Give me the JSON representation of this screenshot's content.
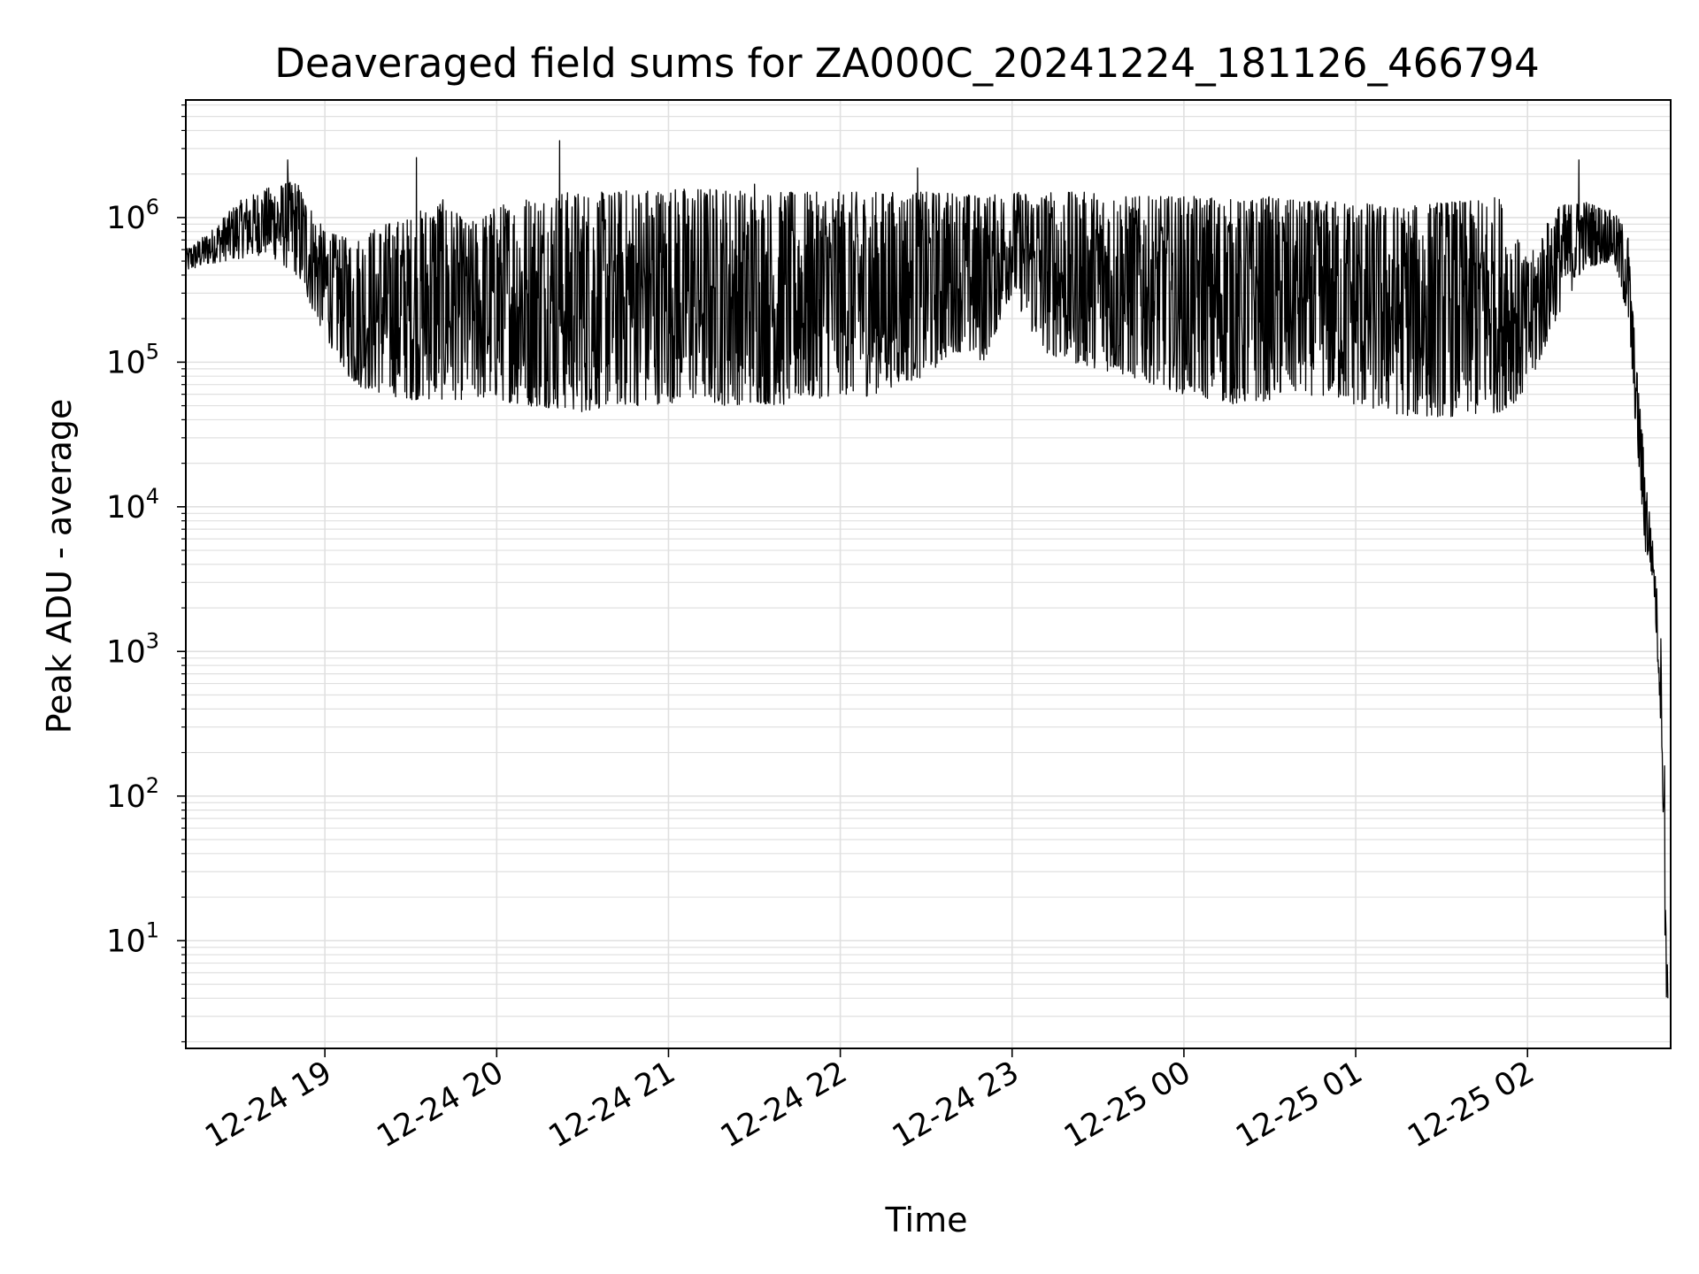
{
  "chart_data": {
    "type": "line",
    "title": "Deaveraged field sums for ZA000C_20241224_181126_466794",
    "xlabel": "Time",
    "ylabel": "Peak ADU - average",
    "x_axis": {
      "type": "time",
      "range": [
        "2024-12-24 18:11:26",
        "2024-12-25 02:50:00"
      ],
      "tick_labels": [
        "12-24 19",
        "12-24 20",
        "12-24 21",
        "12-24 22",
        "12-24 23",
        "12-25 00",
        "12-25 01",
        "12-25 02"
      ],
      "tick_rotation_deg": 30
    },
    "y_axis": {
      "scale": "log",
      "range": [
        1.8,
        6500000
      ],
      "tick_base": "10",
      "tick_exponents": [
        "1",
        "2",
        "3",
        "4",
        "5",
        "6"
      ]
    },
    "grid": {
      "major": true,
      "minor_y": true,
      "color": "#e0e0e0"
    },
    "line_color": "#000000",
    "series": [
      {
        "x": [
          "2024-12-24 18:11:26",
          "2024-12-24 18:20",
          "2024-12-24 18:30",
          "2024-12-24 18:40",
          "2024-12-24 18:50",
          "2024-12-24 19:00",
          "2024-12-24 19:10",
          "2024-12-24 19:20",
          "2024-12-24 19:30",
          "2024-12-24 19:40",
          "2024-12-24 19:50",
          "2024-12-24 20:00",
          "2024-12-24 20:10",
          "2024-12-24 20:20",
          "2024-12-24 20:30",
          "2024-12-24 20:40",
          "2024-12-24 20:50",
          "2024-12-24 21:00",
          "2024-12-24 21:10",
          "2024-12-24 21:20",
          "2024-12-24 21:30",
          "2024-12-24 21:40",
          "2024-12-24 21:50",
          "2024-12-24 22:00",
          "2024-12-24 22:10",
          "2024-12-24 22:20",
          "2024-12-24 22:30",
          "2024-12-24 22:40",
          "2024-12-24 22:50",
          "2024-12-24 23:00",
          "2024-12-24 23:10",
          "2024-12-24 23:20",
          "2024-12-24 23:30",
          "2024-12-24 23:40",
          "2024-12-24 23:50",
          "2024-12-25 00:00",
          "2024-12-25 00:10",
          "2024-12-25 00:20",
          "2024-12-25 00:30",
          "2024-12-25 00:40",
          "2024-12-25 00:50",
          "2024-12-25 01:00",
          "2024-12-25 01:10",
          "2024-12-25 01:20",
          "2024-12-25 01:30",
          "2024-12-25 01:40",
          "2024-12-25 01:50",
          "2024-12-25 02:00",
          "2024-12-25 02:10",
          "2024-12-25 02:20",
          "2024-12-25 02:30",
          "2024-12-25 02:35",
          "2024-12-25 02:38",
          "2024-12-25 02:41",
          "2024-12-25 02:44",
          "2024-12-25 02:47",
          "2024-12-25 02:48",
          "2024-12-25 02:49"
        ],
        "low": [
          420000,
          480000,
          520000,
          560000,
          400000,
          150000,
          70000,
          60000,
          55000,
          55000,
          55000,
          55000,
          50000,
          48000,
          45000,
          50000,
          50000,
          52000,
          55000,
          50000,
          52000,
          50000,
          55000,
          60000,
          58000,
          70000,
          80000,
          120000,
          100000,
          300000,
          120000,
          100000,
          90000,
          80000,
          70000,
          60000,
          55000,
          50000,
          55000,
          60000,
          58000,
          50000,
          45000,
          42000,
          42000,
          42000,
          45000,
          60000,
          200000,
          450000,
          500000,
          200000,
          30000,
          5000,
          3000,
          200,
          4,
          4
        ],
        "high": [
          600000,
          800000,
          1300000,
          1600000,
          1800000,
          800000,
          700000,
          900000,
          1000000,
          1400000,
          900000,
          1200000,
          1400000,
          1500000,
          1500000,
          1500000,
          1600000,
          1600000,
          1600000,
          1600000,
          1500000,
          1500000,
          1500000,
          1500000,
          1500000,
          1500000,
          1500000,
          1500000,
          1400000,
          1500000,
          1500000,
          1500000,
          1500000,
          1400000,
          1400000,
          1400000,
          1400000,
          1300000,
          1400000,
          1300000,
          1300000,
          1300000,
          1200000,
          1200000,
          1300000,
          1300000,
          1400000,
          500000,
          1200000,
          1300000,
          1100000,
          800000,
          100000,
          20000,
          5000,
          1000,
          150,
          4
        ],
        "spikes": [
          {
            "x": "2024-12-24 18:47",
            "y": 2500000
          },
          {
            "x": "2024-12-24 19:32",
            "y": 2600000
          },
          {
            "x": "2024-12-24 20:22",
            "y": 3400000
          },
          {
            "x": "2024-12-24 21:30",
            "y": 1700000
          },
          {
            "x": "2024-12-24 22:27",
            "y": 2200000
          },
          {
            "x": "2024-12-25 02:18",
            "y": 2500000
          }
        ]
      }
    ]
  }
}
